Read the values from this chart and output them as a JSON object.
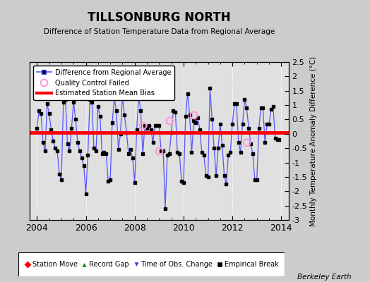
{
  "title": "TILLSONBURG NORTH",
  "subtitle": "Difference of Station Temperature Data from Regional Average",
  "ylabel_right": "Monthly Temperature Anomaly Difference (°C)",
  "xlim": [
    2003.7,
    2014.3
  ],
  "ylim": [
    -3.0,
    2.5
  ],
  "yticks": [
    -3,
    -2.5,
    -2,
    -1.5,
    -1,
    -0.5,
    0,
    0.5,
    1,
    1.5,
    2,
    2.5
  ],
  "ytick_labels": [
    "-3",
    "-2.5",
    "-2",
    "-1.5",
    "-1",
    "-0.5",
    "0",
    "0.5",
    "1",
    "1.5",
    "2",
    "2.5"
  ],
  "xticks": [
    2004,
    2006,
    2008,
    2010,
    2012,
    2014
  ],
  "bias": 0.05,
  "line_color": "#5555ff",
  "marker_color": "#000000",
  "bias_color": "#ff0000",
  "qc_color": "#ff99dd",
  "plot_bg": "#e0e0e0",
  "fig_bg": "#cccccc",
  "footer": "Berkeley Earth",
  "times": [
    2004.0,
    2004.083,
    2004.167,
    2004.25,
    2004.333,
    2004.417,
    2004.5,
    2004.583,
    2004.667,
    2004.75,
    2004.833,
    2004.917,
    2005.0,
    2005.083,
    2005.167,
    2005.25,
    2005.333,
    2005.417,
    2005.5,
    2005.583,
    2005.667,
    2005.75,
    2005.833,
    2005.917,
    2006.0,
    2006.083,
    2006.167,
    2006.25,
    2006.333,
    2006.417,
    2006.5,
    2006.583,
    2006.667,
    2006.75,
    2006.833,
    2006.917,
    2007.0,
    2007.083,
    2007.167,
    2007.25,
    2007.333,
    2007.417,
    2007.5,
    2007.583,
    2007.667,
    2007.75,
    2007.833,
    2007.917,
    2008.0,
    2008.083,
    2008.167,
    2008.25,
    2008.333,
    2008.417,
    2008.5,
    2008.583,
    2008.667,
    2008.75,
    2008.833,
    2008.917,
    2009.0,
    2009.083,
    2009.167,
    2009.25,
    2009.333,
    2009.417,
    2009.5,
    2009.583,
    2009.667,
    2009.75,
    2009.833,
    2009.917,
    2010.0,
    2010.083,
    2010.167,
    2010.25,
    2010.333,
    2010.417,
    2010.5,
    2010.583,
    2010.667,
    2010.75,
    2010.833,
    2010.917,
    2011.0,
    2011.083,
    2011.167,
    2011.25,
    2011.333,
    2011.417,
    2011.5,
    2011.583,
    2011.667,
    2011.75,
    2011.833,
    2011.917,
    2012.0,
    2012.083,
    2012.167,
    2012.25,
    2012.333,
    2012.417,
    2012.5,
    2012.583,
    2012.667,
    2012.75,
    2012.833,
    2012.917,
    2013.0,
    2013.083,
    2013.167,
    2013.25,
    2013.333,
    2013.417,
    2013.5,
    2013.583,
    2013.667,
    2013.75,
    2013.833,
    2013.917
  ],
  "values": [
    0.2,
    0.8,
    0.7,
    -0.3,
    -0.6,
    1.05,
    0.7,
    0.15,
    -0.25,
    -0.5,
    -0.6,
    -1.4,
    -1.6,
    1.1,
    1.2,
    -0.35,
    -0.6,
    0.2,
    1.1,
    0.5,
    -0.3,
    -0.6,
    -0.85,
    -1.1,
    -2.1,
    -0.75,
    1.2,
    1.1,
    -0.5,
    -0.6,
    0.95,
    0.6,
    -0.7,
    -0.65,
    -0.7,
    -1.65,
    -1.6,
    0.4,
    1.25,
    0.8,
    -0.55,
    0.0,
    1.3,
    0.65,
    0.05,
    -0.7,
    -0.55,
    -0.85,
    -1.7,
    0.15,
    1.3,
    0.8,
    -0.7,
    0.3,
    0.2,
    0.3,
    0.15,
    -0.3,
    0.3,
    0.3,
    0.3,
    -0.6,
    -0.6,
    -2.6,
    -0.75,
    -0.7,
    0.05,
    0.8,
    0.75,
    -0.65,
    -0.7,
    -1.65,
    -1.7,
    0.6,
    1.4,
    0.65,
    -0.65,
    0.45,
    0.4,
    0.55,
    0.15,
    -0.65,
    -0.75,
    -1.45,
    -1.5,
    1.6,
    0.5,
    -0.5,
    -1.45,
    -0.5,
    0.35,
    -0.4,
    -1.45,
    -1.75,
    -0.75,
    -0.65,
    0.35,
    1.05,
    1.05,
    -0.3,
    -0.65,
    0.35,
    1.2,
    0.9,
    0.2,
    -0.35,
    -0.7,
    -1.6,
    -1.6,
    0.2,
    0.9,
    0.9,
    -0.3,
    0.35,
    0.35,
    0.85,
    0.95,
    -0.15,
    -0.2,
    -0.2
  ],
  "qc_failed_times": [
    2008.333,
    2009.0,
    2009.417,
    2010.417,
    2012.583
  ],
  "qc_failed_values": [
    0.3,
    -0.6,
    0.45,
    0.65,
    -0.3
  ]
}
